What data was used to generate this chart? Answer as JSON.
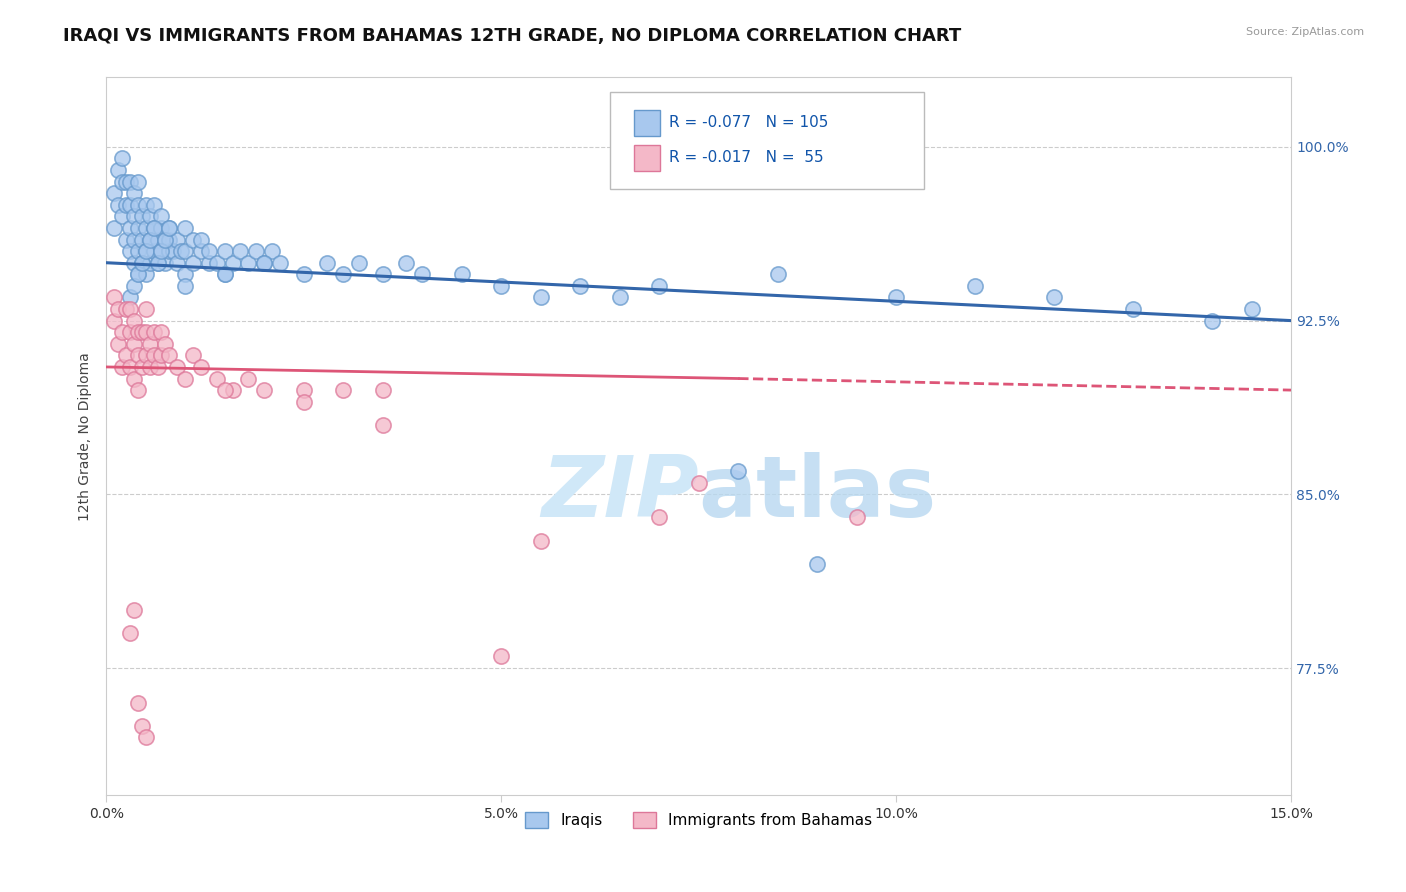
{
  "title": "IRAQI VS IMMIGRANTS FROM BAHAMAS 12TH GRADE, NO DIPLOMA CORRELATION CHART",
  "source": "Source: ZipAtlas.com",
  "xlabel_vals": [
    0.0,
    5.0,
    10.0,
    15.0
  ],
  "ylabel": "12th Grade, No Diploma",
  "ylabel_right_vals": [
    100.0,
    92.5,
    85.0,
    77.5
  ],
  "xlim": [
    0.0,
    15.0
  ],
  "ylim": [
    72.0,
    103.0
  ],
  "legend_iraqis": "Iraqis",
  "legend_bahamas": "Immigrants from Bahamas",
  "R_iraqis": -0.077,
  "N_iraqis": 105,
  "R_bahamas": -0.017,
  "N_bahamas": 55,
  "color_iraqis": "#a8c8ee",
  "color_bahamas": "#f4b8c8",
  "color_iraqis_edge": "#6699cc",
  "color_bahamas_edge": "#dd7799",
  "line_color_iraqis": "#3366aa",
  "line_color_bahamas": "#dd5577",
  "watermark_color": "#d0e8f8",
  "background_color": "#ffffff",
  "title_fontsize": 13,
  "axis_label_fontsize": 10,
  "tick_fontsize": 10,
  "iraqis_x": [
    0.1,
    0.1,
    0.15,
    0.15,
    0.2,
    0.2,
    0.2,
    0.25,
    0.25,
    0.25,
    0.3,
    0.3,
    0.3,
    0.3,
    0.35,
    0.35,
    0.35,
    0.35,
    0.4,
    0.4,
    0.4,
    0.4,
    0.4,
    0.45,
    0.45,
    0.45,
    0.5,
    0.5,
    0.5,
    0.5,
    0.55,
    0.55,
    0.55,
    0.6,
    0.6,
    0.6,
    0.65,
    0.65,
    0.7,
    0.7,
    0.7,
    0.75,
    0.75,
    0.8,
    0.8,
    0.8,
    0.85,
    0.9,
    0.9,
    0.95,
    1.0,
    1.0,
    1.0,
    1.1,
    1.1,
    1.2,
    1.2,
    1.3,
    1.3,
    1.4,
    1.5,
    1.5,
    1.6,
    1.7,
    1.8,
    1.9,
    2.0,
    2.1,
    2.2,
    2.5,
    2.8,
    3.0,
    3.2,
    3.5,
    3.8,
    4.0,
    4.5,
    5.0,
    5.5,
    6.0,
    6.5,
    7.0,
    8.0,
    8.5,
    9.0,
    10.0,
    11.0,
    12.0,
    13.0,
    14.0,
    14.5,
    0.3,
    0.35,
    0.4,
    0.45,
    0.5,
    0.55,
    0.6,
    0.65,
    0.7,
    0.75,
    0.8,
    1.0,
    1.5,
    2.0
  ],
  "iraqis_y": [
    96.5,
    98.0,
    97.5,
    99.0,
    97.0,
    98.5,
    99.5,
    96.0,
    97.5,
    98.5,
    95.5,
    96.5,
    97.5,
    98.5,
    95.0,
    96.0,
    97.0,
    98.0,
    94.5,
    95.5,
    96.5,
    97.5,
    98.5,
    95.0,
    96.0,
    97.0,
    94.5,
    95.5,
    96.5,
    97.5,
    95.0,
    96.0,
    97.0,
    95.5,
    96.5,
    97.5,
    95.0,
    96.0,
    95.5,
    96.5,
    97.0,
    95.0,
    96.0,
    95.5,
    96.0,
    96.5,
    95.5,
    95.0,
    96.0,
    95.5,
    94.5,
    95.5,
    96.5,
    95.0,
    96.0,
    95.5,
    96.0,
    95.0,
    95.5,
    95.0,
    94.5,
    95.5,
    95.0,
    95.5,
    95.0,
    95.5,
    95.0,
    95.5,
    95.0,
    94.5,
    95.0,
    94.5,
    95.0,
    94.5,
    95.0,
    94.5,
    94.5,
    94.0,
    93.5,
    94.0,
    93.5,
    94.0,
    86.0,
    94.5,
    82.0,
    93.5,
    94.0,
    93.5,
    93.0,
    92.5,
    93.0,
    93.5,
    94.0,
    94.5,
    95.0,
    95.5,
    96.0,
    96.5,
    95.0,
    95.5,
    96.0,
    96.5,
    94.0,
    94.5,
    95.0
  ],
  "bahamas_x": [
    0.1,
    0.1,
    0.15,
    0.15,
    0.2,
    0.2,
    0.25,
    0.25,
    0.3,
    0.3,
    0.3,
    0.35,
    0.35,
    0.35,
    0.4,
    0.4,
    0.4,
    0.45,
    0.45,
    0.5,
    0.5,
    0.5,
    0.55,
    0.55,
    0.6,
    0.6,
    0.65,
    0.7,
    0.7,
    0.75,
    0.8,
    0.9,
    1.0,
    1.1,
    1.2,
    1.4,
    1.6,
    1.8,
    2.0,
    2.5,
    3.0,
    3.5,
    5.5,
    7.5,
    9.5,
    0.3,
    0.35,
    0.4,
    0.45,
    0.5,
    1.5,
    2.5,
    3.5,
    5.0,
    7.0
  ],
  "bahamas_y": [
    92.5,
    93.5,
    91.5,
    93.0,
    90.5,
    92.0,
    91.0,
    93.0,
    90.5,
    92.0,
    93.0,
    90.0,
    91.5,
    92.5,
    89.5,
    91.0,
    92.0,
    90.5,
    92.0,
    91.0,
    92.0,
    93.0,
    90.5,
    91.5,
    91.0,
    92.0,
    90.5,
    91.0,
    92.0,
    91.5,
    91.0,
    90.5,
    90.0,
    91.0,
    90.5,
    90.0,
    89.5,
    90.0,
    89.5,
    89.5,
    89.5,
    89.5,
    83.0,
    85.5,
    84.0,
    79.0,
    80.0,
    76.0,
    75.0,
    74.5,
    89.5,
    89.0,
    88.0,
    78.0,
    84.0
  ]
}
